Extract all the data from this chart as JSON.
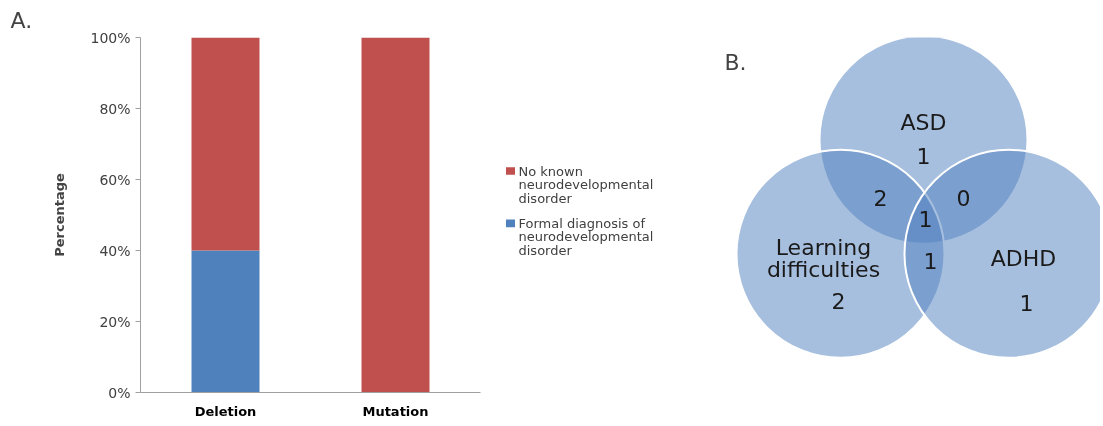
{
  "chart_data": [
    {
      "type": "bar",
      "title": "A.",
      "ylabel": "Percentage",
      "categories": [
        "Deletion",
        "Mutation"
      ],
      "stacked": true,
      "series": [
        {
          "name": "Formal diagnosis of neurodevelopmental disorder",
          "color": "#4f81bd",
          "values": [
            40,
            0
          ]
        },
        {
          "name": "No known neurodevelopmental disorder",
          "color": "#c0504d",
          "values": [
            60,
            100
          ]
        }
      ],
      "ylim": [
        0,
        100
      ],
      "yticks": [
        {
          "value": 0,
          "label": "0%"
        },
        {
          "value": 20,
          "label": "20%"
        },
        {
          "value": 40,
          "label": "40%"
        },
        {
          "value": 60,
          "label": "60%"
        },
        {
          "value": 80,
          "label": "80%"
        },
        {
          "value": 100,
          "label": "100%"
        }
      ],
      "grid": false,
      "legend": "right"
    },
    {
      "type": "other",
      "title": "B.",
      "categories": [
        "ASD",
        "Learning difficulties",
        "ADHD"
      ],
      "values": [
        1,
        2,
        1
      ],
      "annotations": [
        "2",
        "0",
        "1",
        "1"
      ],
      "color": "#4f7fbd",
      "data_labels": true
    }
  ]
}
